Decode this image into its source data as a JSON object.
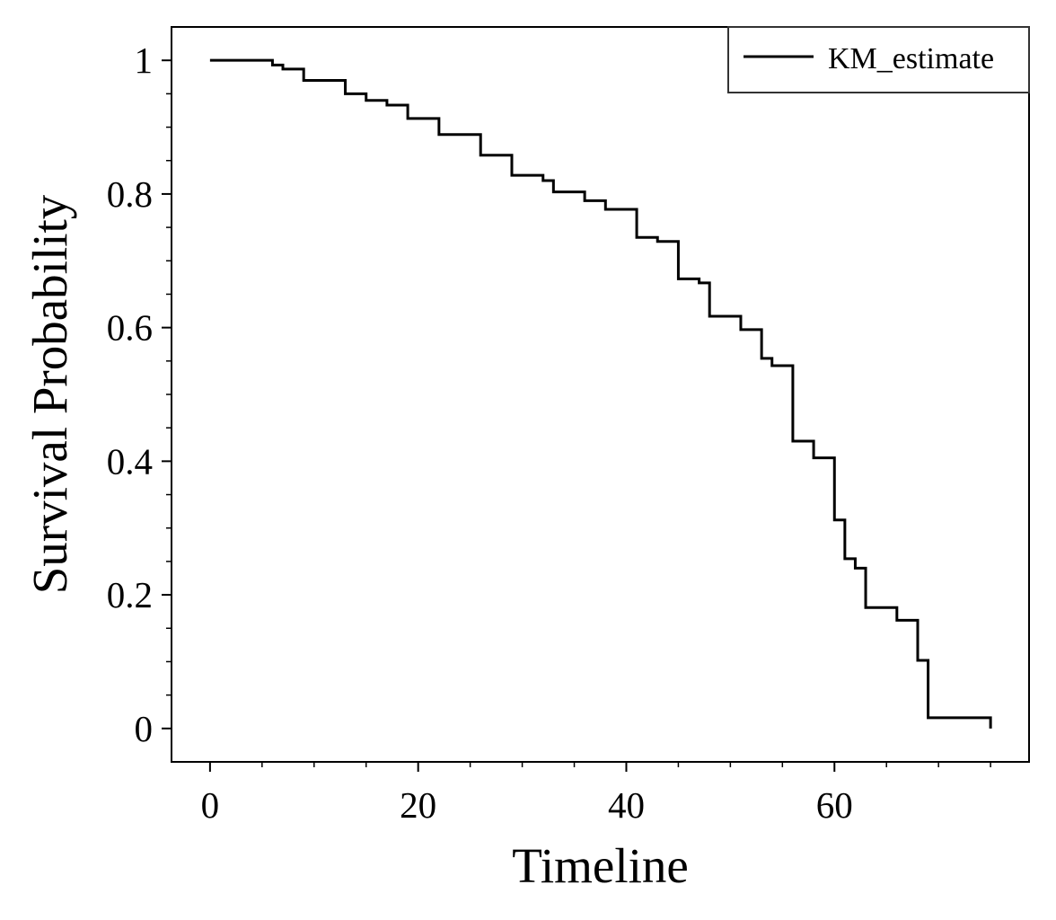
{
  "chart_data": {
    "type": "line",
    "step": true,
    "title": "",
    "xlabel": "Timeline",
    "ylabel": "Survival Probability",
    "xlim": [
      -3.7,
      78.7
    ],
    "ylim": [
      -0.05,
      1.05
    ],
    "x_ticks": [
      0,
      20,
      40,
      60
    ],
    "x_tick_labels": [
      "0",
      "20",
      "40",
      "60"
    ],
    "y_ticks": [
      0,
      0.2,
      0.4,
      0.6,
      0.8,
      1
    ],
    "y_tick_labels": [
      "0",
      "0.2",
      "0.4",
      "0.6",
      "0.8",
      "1"
    ],
    "x_minor_step": 5,
    "y_minor_step": 0.05,
    "grid": false,
    "legend": {
      "position": "top-right"
    },
    "colors": {
      "line": "#000000",
      "legend_border": "#333333"
    },
    "series": [
      {
        "name": "KM_estimate",
        "x": [
          0,
          6,
          7,
          9,
          13,
          15,
          17,
          19,
          22,
          26,
          29,
          32,
          33,
          36,
          38,
          41,
          43,
          45,
          47,
          48,
          51,
          53,
          54,
          56,
          58,
          60,
          61,
          62,
          63,
          66,
          68,
          69,
          75
        ],
        "y": [
          1.0,
          0.993,
          0.987,
          0.97,
          0.95,
          0.94,
          0.933,
          0.913,
          0.889,
          0.858,
          0.828,
          0.82,
          0.803,
          0.79,
          0.777,
          0.735,
          0.729,
          0.673,
          0.667,
          0.617,
          0.597,
          0.554,
          0.543,
          0.43,
          0.405,
          0.312,
          0.254,
          0.24,
          0.181,
          0.162,
          0.102,
          0.016,
          0.0
        ]
      }
    ]
  }
}
